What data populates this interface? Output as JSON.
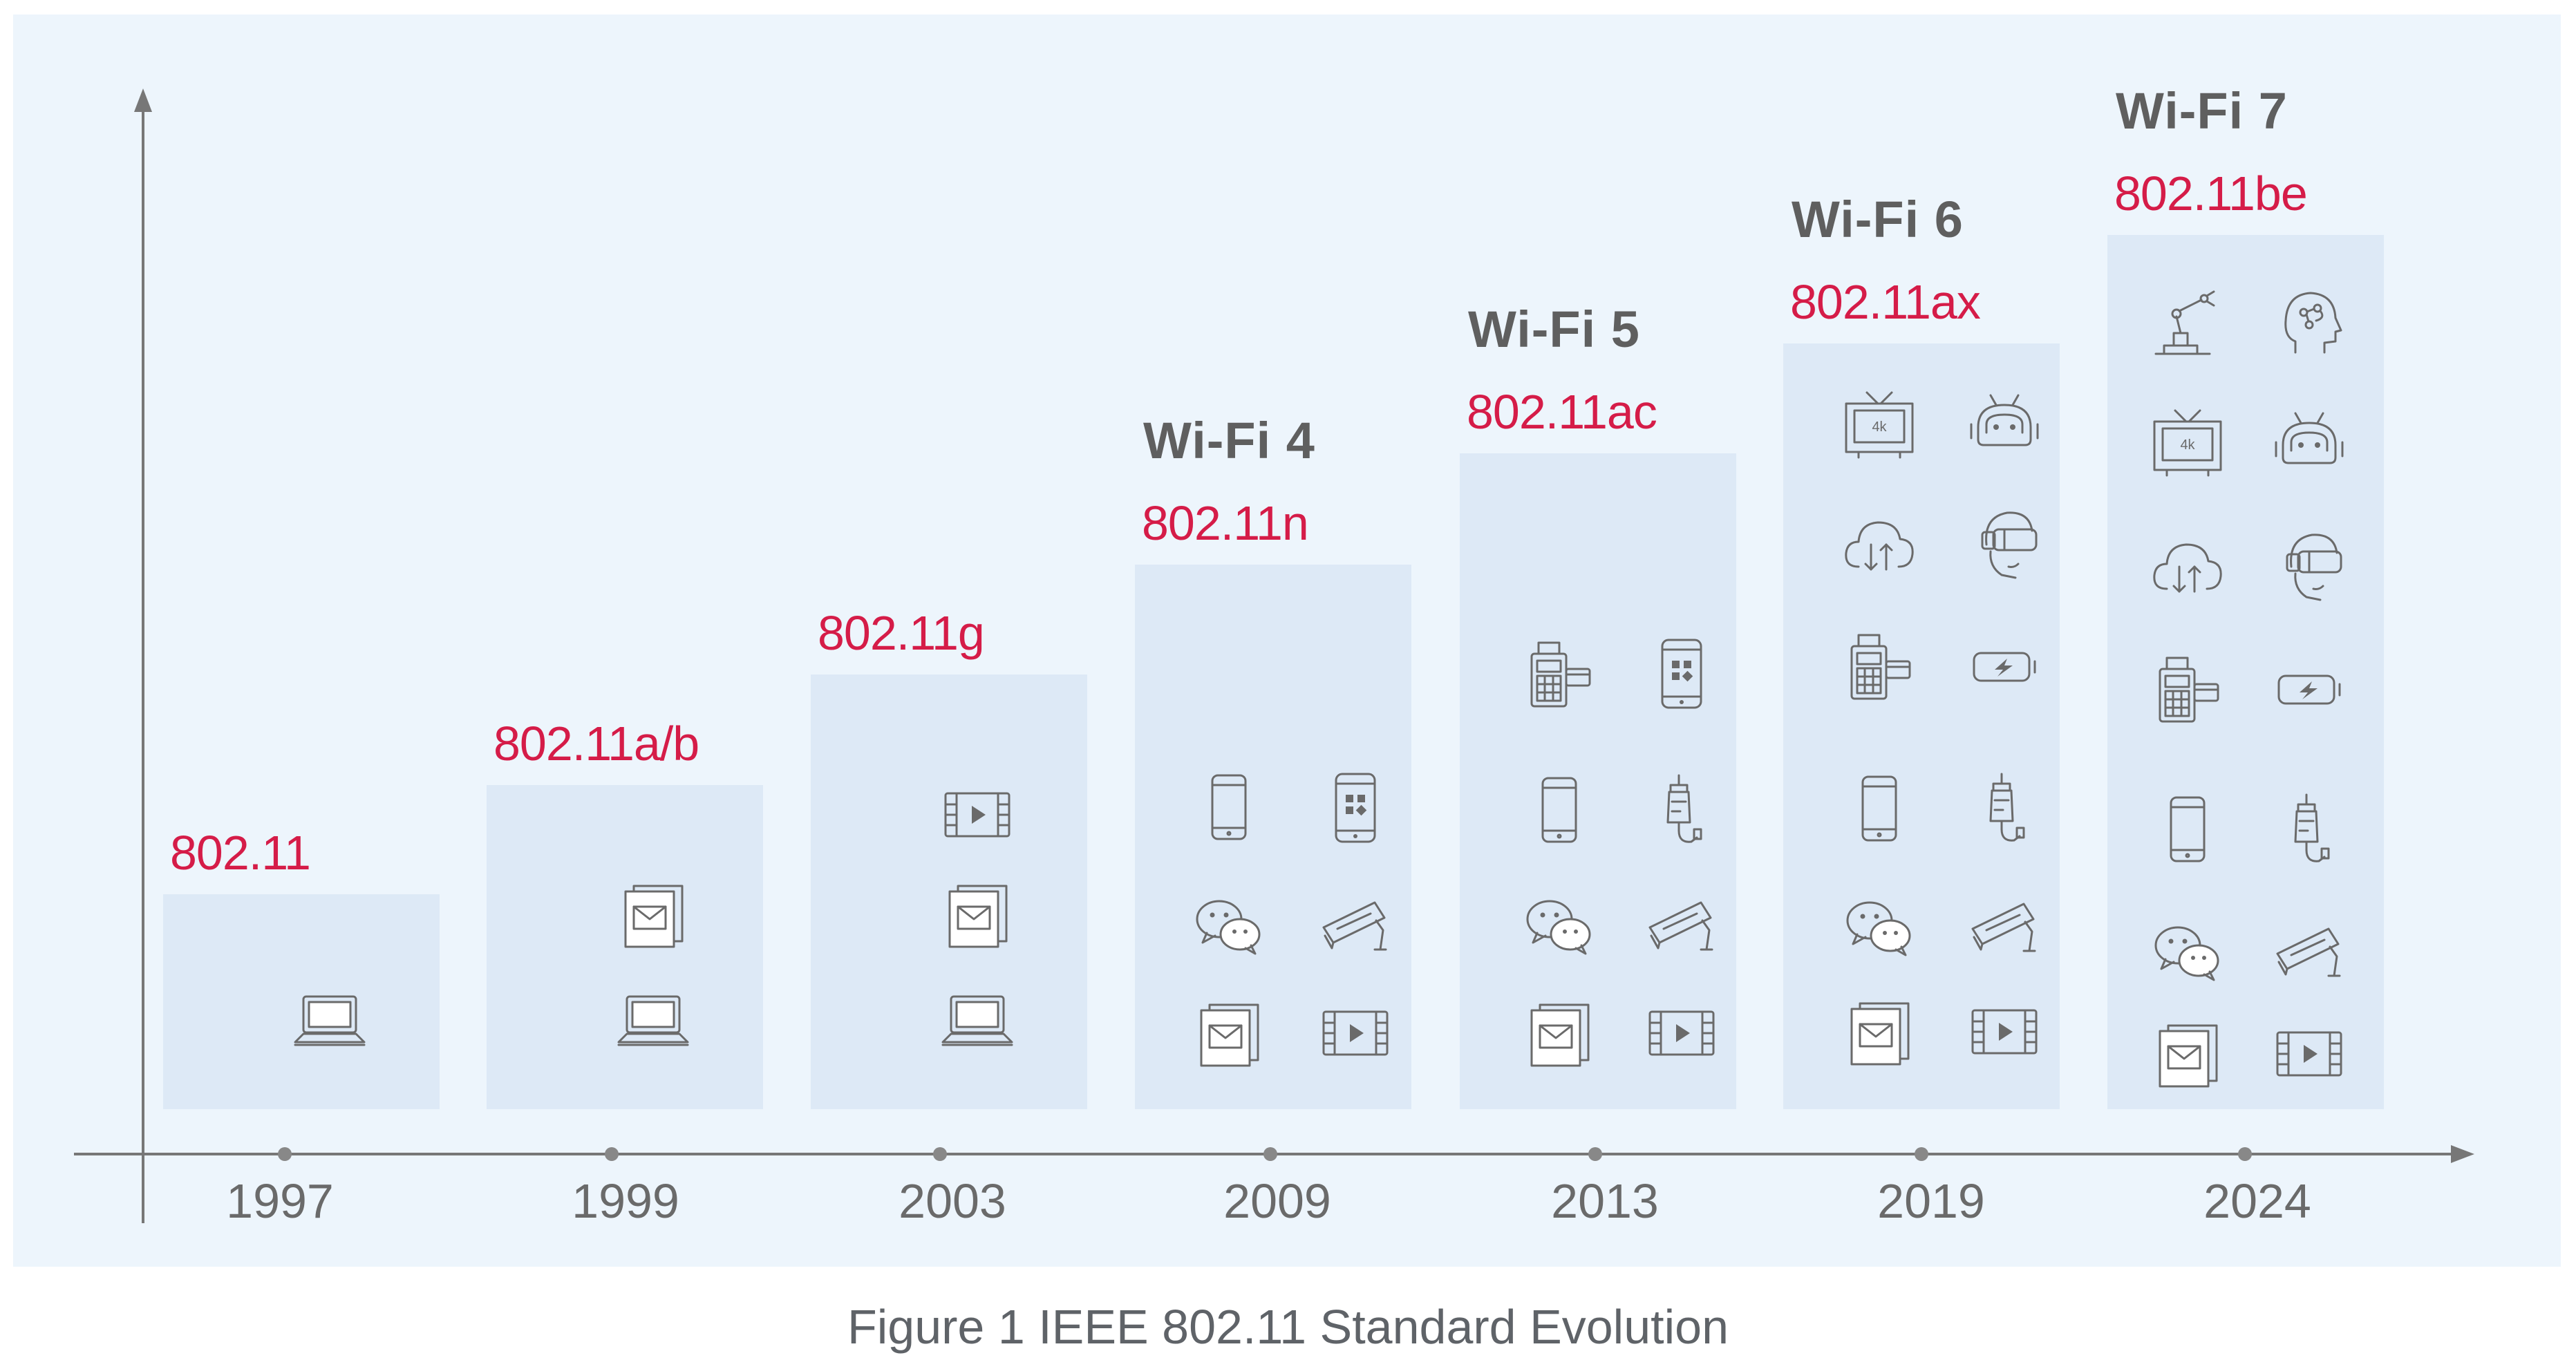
{
  "columns": [
    {
      "year": "1997",
      "standard": "802.11",
      "generation": "",
      "icons": [
        "laptop-icon"
      ]
    },
    {
      "year": "1999",
      "standard": "802.11a/b",
      "generation": "",
      "icons": [
        "email-icon",
        "laptop-icon"
      ]
    },
    {
      "year": "2003",
      "standard": "802.11g",
      "generation": "",
      "icons": [
        "video-icon",
        "email-icon",
        "laptop-icon"
      ]
    },
    {
      "year": "2009",
      "standard": "802.11n",
      "generation": "Wi-Fi 4",
      "icons": [
        "smartphone-icon",
        "app-phone-icon",
        "chat-icon",
        "camera-icon",
        "email-icon",
        "video-icon"
      ]
    },
    {
      "year": "2013",
      "standard": "802.11ac",
      "generation": "Wi-Fi 5",
      "icons": [
        "pos-terminal-icon",
        "app-phone-icon",
        "smartphone-icon",
        "medical-drip-icon",
        "chat-icon",
        "camera-icon",
        "email-icon",
        "video-icon"
      ]
    },
    {
      "year": "2019",
      "standard": "802.11ax",
      "generation": "Wi-Fi 6",
      "icons": [
        "tv-4k-icon",
        "robot-icon",
        "cloud-sync-icon",
        "vr-headset-icon",
        "pos-terminal-icon",
        "battery-icon",
        "smartphone-icon",
        "medical-drip-icon",
        "chat-icon",
        "camera-icon",
        "email-icon",
        "video-icon"
      ]
    },
    {
      "year": "2024",
      "standard": "802.11be",
      "generation": "Wi-Fi 7",
      "icons": [
        "robot-arm-icon",
        "ai-head-icon",
        "tv-4k-icon",
        "robot-icon",
        "cloud-sync-icon",
        "vr-headset-icon",
        "pos-terminal-icon",
        "battery-icon",
        "smartphone-icon",
        "medical-drip-icon",
        "chat-icon",
        "camera-icon",
        "email-icon",
        "video-icon"
      ]
    }
  ],
  "caption": "Figure 1  IEEE 802.11 Standard Evolution",
  "colors": {
    "panel": "#edf5fc",
    "box": "#dde9f6",
    "standard": "#d51c48",
    "generation": "#5f5f5f",
    "axis": "#777777"
  }
}
